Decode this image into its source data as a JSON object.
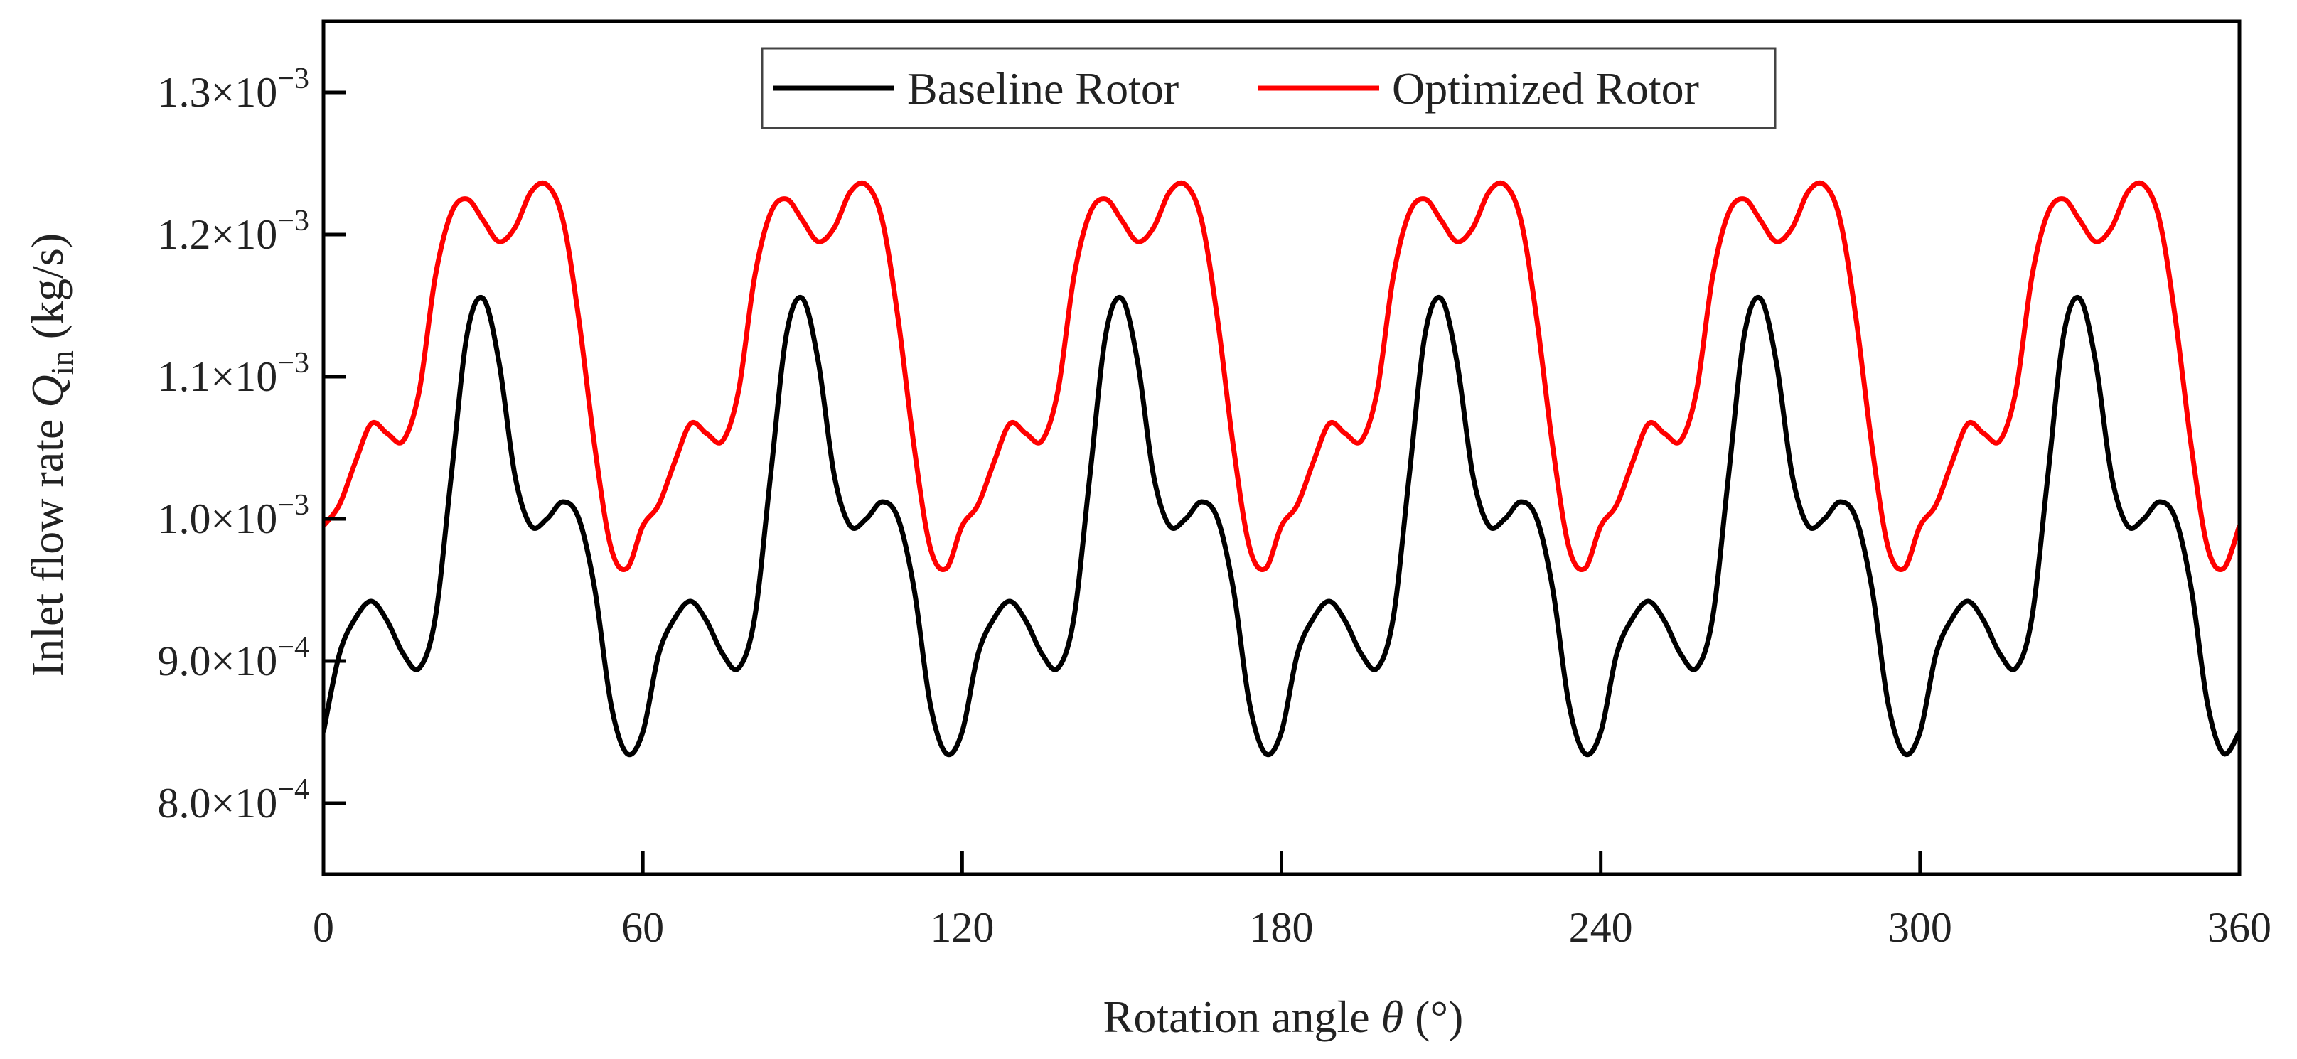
{
  "chart_data": {
    "type": "line",
    "title": "",
    "xlabel": "Rotation angle",
    "xlabel_symbol": "θ",
    "xlabel_unit": "(°)",
    "ylabel": "Inlet flow rate",
    "ylabel_symbol": "Q",
    "ylabel_subscript": "in",
    "ylabel_unit": "(kg/s)",
    "xlim": [
      0,
      360
    ],
    "ylim": [
      0.00075,
      0.00135
    ],
    "x_ticks": [
      0,
      60,
      120,
      180,
      240,
      300,
      360
    ],
    "x_tick_labels": [
      "0",
      "60",
      "120",
      "180",
      "240",
      "300",
      "360"
    ],
    "y_ticks": [
      0.0008,
      0.0009,
      0.001,
      0.0011,
      0.0012,
      0.0013
    ],
    "y_tick_labels": [
      {
        "mantissa": "8.0×10",
        "exp": "−4"
      },
      {
        "mantissa": "9.0×10",
        "exp": "−4"
      },
      {
        "mantissa": "1.0×10",
        "exp": "−3"
      },
      {
        "mantissa": "1.1×10",
        "exp": "−3"
      },
      {
        "mantissa": "1.2×10",
        "exp": "−3"
      },
      {
        "mantissa": "1.3×10",
        "exp": "−3"
      }
    ],
    "legend_position": "top-center",
    "period_deg": 60,
    "series": [
      {
        "name": "Baseline Rotor",
        "color": "#000000",
        "x": [
          0,
          3,
          6,
          9,
          12,
          15,
          18,
          21,
          24,
          27,
          30,
          33,
          36,
          39,
          42,
          45,
          48,
          51,
          54,
          57,
          60
        ],
        "y": [
          0.00085,
          0.000905,
          0.00093,
          0.000942,
          0.000928,
          0.000905,
          0.000895,
          0.00093,
          0.00103,
          0.00113,
          0.001155,
          0.00111,
          0.00103,
          0.000995,
          0.001,
          0.001012,
          0.001,
          0.00095,
          0.00087,
          0.000835,
          0.00085
        ]
      },
      {
        "name": "Optimized Rotor",
        "color": "#ff0000",
        "x": [
          0,
          3,
          6,
          9,
          12,
          15,
          18,
          21,
          24,
          27,
          30,
          33,
          36,
          39,
          42,
          45,
          48,
          51,
          54,
          57,
          60
        ],
        "y": [
          0.000995,
          0.00101,
          0.00104,
          0.001067,
          0.00106,
          0.001055,
          0.00109,
          0.00117,
          0.001215,
          0.001225,
          0.00121,
          0.001195,
          0.001205,
          0.00123,
          0.001235,
          0.00121,
          0.00114,
          0.00105,
          0.00098,
          0.000965,
          0.000995
        ]
      }
    ]
  }
}
